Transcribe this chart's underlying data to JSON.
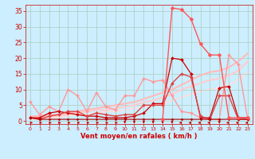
{
  "background_color": "#cceeff",
  "grid_color": "#aaccbb",
  "xlabel": "Vent moyen/en rafales ( km/h )",
  "xlabel_color": "#cc0000",
  "tick_color": "#cc0000",
  "xlim": [
    -0.5,
    23.5
  ],
  "ylim": [
    -1,
    37
  ],
  "yticks": [
    0,
    5,
    10,
    15,
    20,
    25,
    30,
    35
  ],
  "xticks": [
    0,
    1,
    2,
    3,
    4,
    5,
    6,
    7,
    8,
    9,
    10,
    11,
    12,
    13,
    14,
    15,
    16,
    17,
    18,
    19,
    20,
    21,
    22,
    23
  ],
  "series": [
    {
      "x": [
        0,
        1,
        2,
        3,
        4,
        5,
        6,
        7,
        8,
        9,
        10,
        11,
        12,
        13,
        14,
        15,
        16,
        17,
        18,
        19,
        20,
        21,
        22,
        23
      ],
      "y": [
        1.0,
        0.5,
        0.5,
        0.5,
        0.5,
        0.5,
        0.5,
        0.5,
        0.5,
        0.5,
        0.5,
        0.5,
        0.5,
        0.5,
        0.5,
        0.5,
        0.5,
        0.5,
        0.5,
        0.5,
        0.5,
        0.5,
        0.5,
        0.5
      ],
      "color": "#aa0000",
      "linewidth": 0.8,
      "marker": "D",
      "markersize": 1.5,
      "zorder": 5
    },
    {
      "x": [
        0,
        1,
        2,
        3,
        4,
        5,
        6,
        7,
        8,
        9,
        10,
        11,
        12,
        13,
        14,
        15,
        16,
        17,
        18,
        19,
        20,
        21,
        22,
        23
      ],
      "y": [
        1.0,
        1.0,
        2.5,
        3.0,
        2.5,
        2.0,
        1.5,
        1.5,
        1.0,
        1.0,
        1.0,
        1.5,
        2.5,
        5.5,
        5.5,
        20.0,
        19.5,
        15.0,
        1.0,
        1.0,
        10.5,
        11.0,
        1.0,
        1.0
      ],
      "color": "#cc0000",
      "linewidth": 0.9,
      "marker": "D",
      "markersize": 2.0,
      "zorder": 4
    },
    {
      "x": [
        0,
        1,
        2,
        3,
        4,
        5,
        6,
        7,
        8,
        9,
        10,
        11,
        12,
        13,
        14,
        15,
        16,
        17,
        18,
        19,
        20,
        21,
        22,
        23
      ],
      "y": [
        6.0,
        2.0,
        4.5,
        3.0,
        10.0,
        8.0,
        3.0,
        9.0,
        4.5,
        3.5,
        8.0,
        8.0,
        13.5,
        12.5,
        13.0,
        8.0,
        3.0,
        2.5,
        1.0,
        0.5,
        0.5,
        21.0,
        18.0,
        0.5
      ],
      "color": "#ff9999",
      "linewidth": 1.0,
      "marker": "D",
      "markersize": 2.0,
      "zorder": 3
    },
    {
      "x": [
        0,
        1,
        2,
        3,
        4,
        5,
        6,
        7,
        8,
        9,
        10,
        11,
        12,
        13,
        14,
        15,
        16,
        17,
        18,
        19,
        20,
        21,
        22,
        23
      ],
      "y": [
        1.0,
        0.5,
        1.5,
        2.0,
        3.0,
        3.0,
        1.5,
        2.5,
        2.0,
        1.5,
        2.0,
        2.0,
        5.0,
        5.0,
        5.0,
        12.0,
        15.0,
        14.0,
        1.5,
        0.5,
        8.0,
        8.0,
        0.5,
        0.5
      ],
      "color": "#dd4444",
      "linewidth": 1.0,
      "marker": "D",
      "markersize": 2.0,
      "zorder": 4
    },
    {
      "x": [
        0,
        1,
        2,
        3,
        4,
        5,
        6,
        7,
        8,
        9,
        10,
        11,
        12,
        13,
        14,
        15,
        16,
        17,
        18,
        19,
        20,
        21,
        22,
        23
      ],
      "y": [
        1.5,
        1.5,
        2.0,
        2.0,
        2.5,
        3.0,
        3.5,
        4.0,
        4.5,
        5.0,
        5.5,
        6.0,
        7.0,
        8.0,
        9.0,
        10.0,
        11.5,
        13.0,
        14.5,
        15.5,
        16.0,
        17.0,
        19.0,
        21.5
      ],
      "color": "#ffbbbb",
      "linewidth": 1.5,
      "marker": null,
      "zorder": 2
    },
    {
      "x": [
        0,
        1,
        2,
        3,
        4,
        5,
        6,
        7,
        8,
        9,
        10,
        11,
        12,
        13,
        14,
        15,
        16,
        17,
        18,
        19,
        20,
        21,
        22,
        23
      ],
      "y": [
        1.0,
        1.0,
        1.5,
        1.5,
        2.0,
        2.5,
        3.0,
        3.5,
        3.5,
        4.0,
        4.5,
        5.0,
        6.0,
        6.5,
        7.5,
        8.5,
        10.0,
        11.0,
        12.0,
        13.0,
        13.5,
        14.5,
        16.0,
        19.0
      ],
      "color": "#ffcccc",
      "linewidth": 1.5,
      "marker": null,
      "zorder": 2
    },
    {
      "x": [
        0,
        1,
        2,
        3,
        4,
        5,
        6,
        7,
        8,
        9,
        10,
        11,
        12,
        13,
        14,
        15,
        16,
        17,
        18,
        19,
        20,
        21,
        22,
        23
      ],
      "y": [
        0.5,
        0.5,
        1.0,
        1.0,
        1.5,
        2.0,
        2.0,
        2.5,
        3.0,
        3.0,
        3.5,
        4.0,
        4.5,
        5.0,
        5.5,
        6.5,
        7.5,
        8.5,
        9.5,
        10.0,
        10.5,
        11.5,
        13.0,
        15.5
      ],
      "color": "#ffdddd",
      "linewidth": 1.2,
      "marker": null,
      "zorder": 1
    },
    {
      "x": [
        14,
        15,
        16,
        17,
        18,
        19,
        20,
        21,
        22,
        23
      ],
      "y": [
        0.5,
        36.0,
        35.5,
        32.5,
        24.5,
        21.0,
        21.0,
        1.0,
        1.0,
        1.0
      ],
      "color": "#ff5555",
      "linewidth": 1.0,
      "marker": "D",
      "markersize": 2.5,
      "zorder": 6
    }
  ],
  "wind_arrows": {
    "x": [
      0,
      1,
      2,
      3,
      4,
      5,
      6,
      7,
      8,
      9,
      10,
      11,
      12,
      13,
      14,
      15,
      16,
      17,
      18,
      19,
      20,
      21,
      22,
      23
    ],
    "directions": [
      "r",
      "r",
      "r",
      "r",
      "r",
      "r",
      "r",
      "r",
      "r",
      "r",
      "d",
      "d",
      "d",
      "d",
      "d",
      "d",
      "l",
      "l",
      "l",
      "l",
      "d",
      "l",
      "l",
      "l"
    ],
    "color": "#cc0000"
  }
}
